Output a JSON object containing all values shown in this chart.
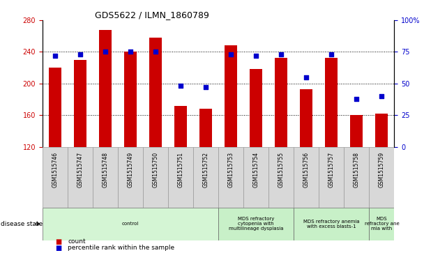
{
  "title": "GDS5622 / ILMN_1860789",
  "samples": [
    "GSM1515746",
    "GSM1515747",
    "GSM1515748",
    "GSM1515749",
    "GSM1515750",
    "GSM1515751",
    "GSM1515752",
    "GSM1515753",
    "GSM1515754",
    "GSM1515755",
    "GSM1515756",
    "GSM1515757",
    "GSM1515758",
    "GSM1515759"
  ],
  "counts": [
    220,
    230,
    268,
    240,
    258,
    172,
    168,
    248,
    218,
    232,
    193,
    232,
    160,
    162
  ],
  "percentiles": [
    72,
    73,
    75,
    75,
    75,
    48,
    47,
    73,
    72,
    73,
    55,
    73,
    38,
    40
  ],
  "ymin": 120,
  "ymax": 280,
  "yticks": [
    120,
    160,
    200,
    240,
    280
  ],
  "y2ticks": [
    0,
    25,
    50,
    75,
    100
  ],
  "bar_color": "#cc0000",
  "dot_color": "#0000cc",
  "bar_bottom": 120,
  "disease_groups": [
    {
      "label": "control",
      "start": 0,
      "end": 7,
      "color": "#d4f5d4"
    },
    {
      "label": "MDS refractory\ncytopenia with\nmultilineage dysplasia",
      "start": 7,
      "end": 10,
      "color": "#c8f0c8"
    },
    {
      "label": "MDS refractory anemia\nwith excess blasts-1",
      "start": 10,
      "end": 13,
      "color": "#c8f0c8"
    },
    {
      "label": "MDS\nrefractory ane\nmia with",
      "start": 13,
      "end": 14,
      "color": "#c8f0c8"
    }
  ],
  "legend_count_label": "count",
  "legend_pct_label": "percentile rank within the sample",
  "disease_state_label": "disease state"
}
